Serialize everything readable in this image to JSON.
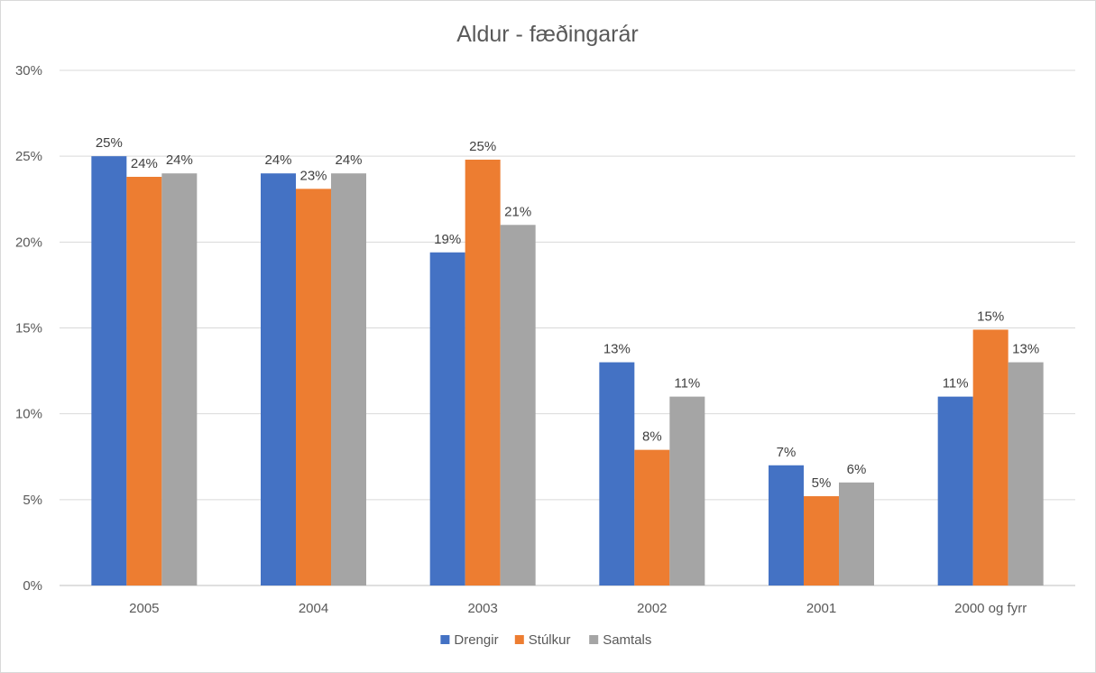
{
  "chart_data": {
    "type": "bar",
    "title": "Aldur - fæðingarár",
    "xlabel": "",
    "ylabel": "",
    "categories": [
      "2005",
      "2004",
      "2003",
      "2002",
      "2001",
      "2000 og fyrr"
    ],
    "ylim": [
      0,
      30
    ],
    "yticks": [
      "0%",
      "5%",
      "10%",
      "15%",
      "20%",
      "25%",
      "30%"
    ],
    "grid": true,
    "legend_position": "bottom",
    "series": [
      {
        "name": "Drengir",
        "color": "#4472c4",
        "values": [
          25,
          24,
          19.4,
          13,
          7,
          11
        ],
        "labels": [
          "25%",
          "24%",
          "19%",
          "13%",
          "7%",
          "11%"
        ]
      },
      {
        "name": "Stúlkur",
        "color": "#ed7d31",
        "values": [
          23.8,
          23.1,
          24.8,
          7.9,
          5.2,
          14.9
        ],
        "labels": [
          "24%",
          "23%",
          "25%",
          "8%",
          "5%",
          "15%"
        ]
      },
      {
        "name": "Samtals",
        "color": "#a5a5a5",
        "values": [
          24,
          24,
          21,
          11,
          6,
          13
        ],
        "labels": [
          "24%",
          "24%",
          "21%",
          "11%",
          "6%",
          "13%"
        ]
      }
    ]
  }
}
